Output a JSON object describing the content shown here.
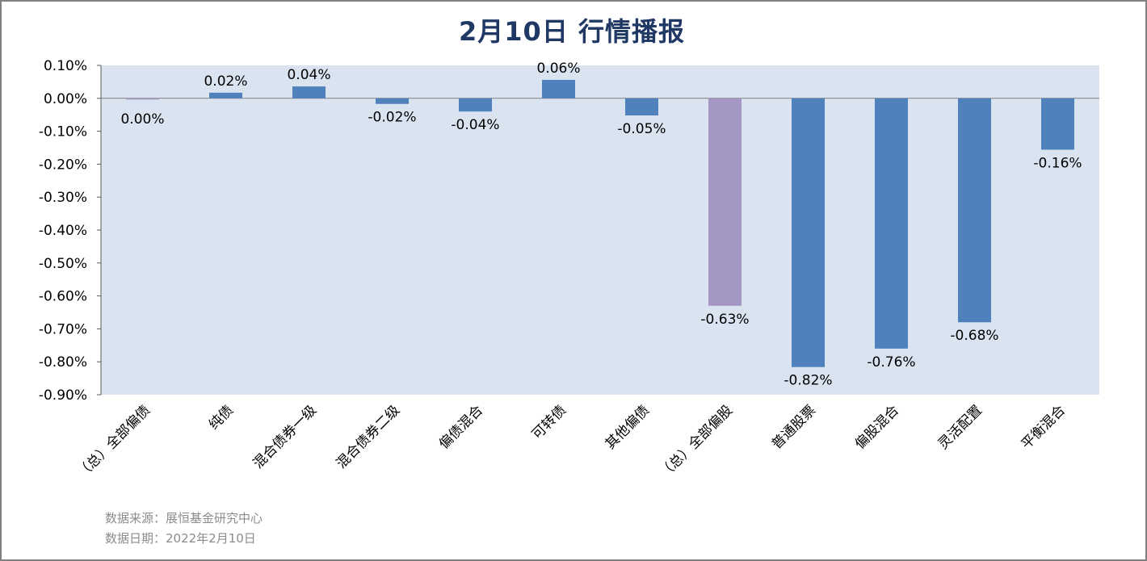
{
  "title": "2月10日  行情播报",
  "footer": {
    "source": "数据来源：展恒基金研究中心",
    "date": "数据日期：2022年2月10日"
  },
  "colors": {
    "plot_background": "#dae3f0",
    "bar_default": "#4f81bd",
    "bar_highlight": "#a597c4",
    "title": "#1f3864",
    "footer_text": "#8c8c8c"
  },
  "chart_data": {
    "type": "bar",
    "title": "2月10日  行情播报",
    "xlabel": "",
    "ylabel": "",
    "ylim": [
      -0.9,
      0.1
    ],
    "yticks": [
      0.1,
      0.0,
      -0.1,
      -0.2,
      -0.3,
      -0.4,
      -0.5,
      -0.6,
      -0.7,
      -0.8,
      -0.9
    ],
    "ytick_labels": [
      "0.10%",
      "0.00%",
      "-0.10%",
      "-0.20%",
      "-0.30%",
      "-0.40%",
      "-0.50%",
      "-0.60%",
      "-0.70%",
      "-0.80%",
      "-0.90%"
    ],
    "grid": false,
    "legend": "none",
    "categories": [
      "（总）全部偏债",
      "纯债",
      "混合债券一级",
      "混合债券二级",
      "偏债混合",
      "可转债",
      "其他偏债",
      "（总）全部偏股",
      "普通股票",
      "偏股混合",
      "灵活配置",
      "平衡混合"
    ],
    "values": [
      -0.003,
      0.017,
      0.036,
      -0.017,
      -0.04,
      0.056,
      -0.052,
      -0.63,
      -0.816,
      -0.76,
      -0.68,
      -0.156
    ],
    "data_labels": [
      "0.00%",
      "0.02%",
      "0.04%",
      "-0.02%",
      "-0.04%",
      "0.06%",
      "-0.05%",
      "-0.63%",
      "-0.82%",
      "-0.76%",
      "-0.68%",
      "-0.16%"
    ],
    "highlight": [
      true,
      false,
      false,
      false,
      false,
      false,
      false,
      true,
      false,
      false,
      false,
      false
    ]
  }
}
